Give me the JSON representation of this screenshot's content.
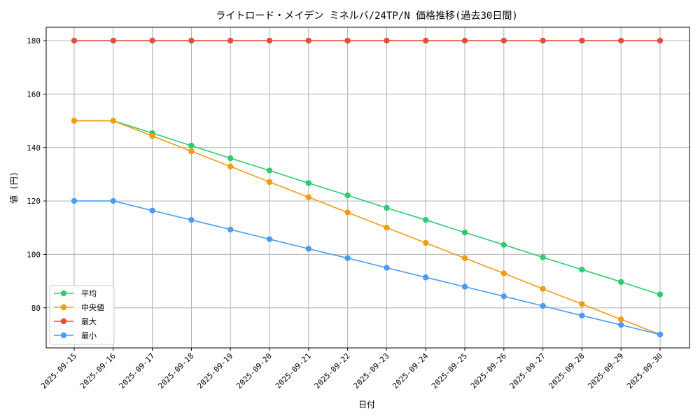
{
  "chart_data": {
    "type": "line",
    "title": "ライトロード・メイデン ミネルバ/24TP/N 価格推移(過去30日間)",
    "xlabel": "日付",
    "ylabel": "値 (円)",
    "categories": [
      "2025-09-15",
      "2025-09-16",
      "2025-09-17",
      "2025-09-18",
      "2025-09-19",
      "2025-09-20",
      "2025-09-21",
      "2025-09-22",
      "2025-09-23",
      "2025-09-24",
      "2025-09-25",
      "2025-09-26",
      "2025-09-27",
      "2025-09-28",
      "2025-09-29",
      "2025-09-30"
    ],
    "ylim": [
      65,
      185
    ],
    "yticks": [
      80,
      100,
      120,
      140,
      160,
      180
    ],
    "grid": true,
    "legend_position": "lower-left",
    "series": [
      {
        "name": "平均",
        "color": "#2ecc71",
        "values": [
          150,
          150,
          145.4,
          140.7,
          136.0,
          131.4,
          126.7,
          122.1,
          117.4,
          112.9,
          108.2,
          103.6,
          98.9,
          94.3,
          89.7,
          85.0
        ]
      },
      {
        "name": "中央値",
        "color": "#f39c12",
        "values": [
          150,
          150,
          144.3,
          138.6,
          132.9,
          127.1,
          121.4,
          115.7,
          110.0,
          104.3,
          98.6,
          92.9,
          87.1,
          81.4,
          75.7,
          70.0
        ]
      },
      {
        "name": "最大",
        "color": "#e74c3c",
        "values": [
          180,
          180,
          180,
          180,
          180,
          180,
          180,
          180,
          180,
          180,
          180,
          180,
          180,
          180,
          180,
          180
        ]
      },
      {
        "name": "最小",
        "color": "#4a9cf7",
        "values": [
          120,
          120,
          116.4,
          112.9,
          109.3,
          105.7,
          102.1,
          98.6,
          95.0,
          91.4,
          87.9,
          84.3,
          80.7,
          77.1,
          73.6,
          70.0
        ]
      }
    ]
  }
}
